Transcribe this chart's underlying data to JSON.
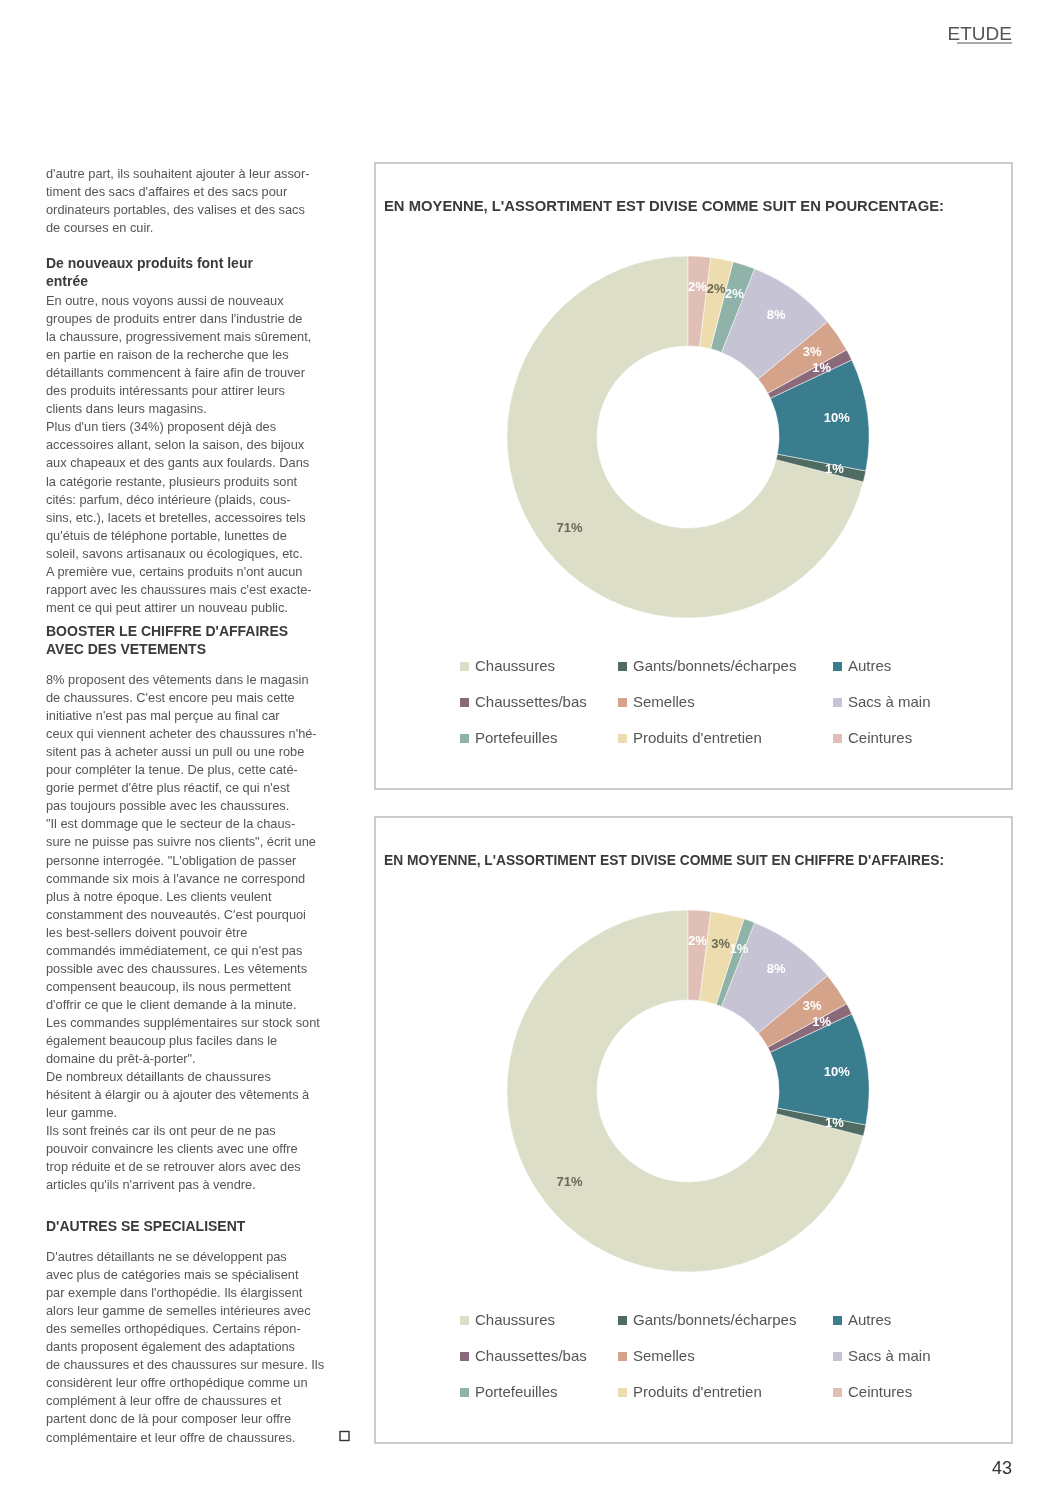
{
  "chart_data": [
    {
      "type": "other",
      "title": "ETUDE",
      "annotations": [
        "d'autre part, ils souhaitent ajouter à leur assor-",
        "timent des sacs d'affaires et des sacs pour",
        "ordinateurs portables, des valises et des sacs",
        "de courses en cuir."
      ]
    },
    {
      "type": "other",
      "title": "De nouveaux produits font leur entrée",
      "annotations": [
        "En outre, nous voyons aussi de nouveaux",
        "groupes de produits entrer dans l'industrie de",
        "la chaussure, progressivement mais sûrement,",
        "en partie en raison de la recherche que les",
        "détaillants commencent à faire afin de trouver",
        "des produits intéressants pour attirer leurs",
        "clients dans leurs magasins.",
        "Plus d'un tiers (34%) proposent déjà des",
        "accessoires allant, selon la saison, des bijoux",
        "aux chapeaux et des gants aux foulards. Dans",
        "la catégorie restante, plusieurs produits sont",
        "cités: parfum, déco intérieure (plaids, cous-",
        "sins, etc.), lacets et bretelles, accessoires tels",
        "qu'étuis de téléphone portable, lunettes de",
        "soleil, savons artisanaux ou écologiques, etc.",
        "A première vue, certains produits n'ont aucun",
        "rapport avec les chaussures mais c'est exacte-",
        "ment ce qui peut attirer un nouveau public."
      ]
    },
    {
      "type": "other",
      "title": "BOOSTER LE CHIFFRE D'AFFAIRES AVEC DES VETEMENTS",
      "annotations": [
        "8% proposent des vêtements dans le magasin",
        "de chaussures. C'est encore peu mais cette",
        "initiative n'est pas mal perçue au final car",
        "ceux qui viennent acheter des chaussures n'hé-",
        "sitent pas à acheter aussi un pull ou une robe",
        "pour compléter la tenue. De plus, cette caté-",
        "gorie permet d'être plus réactif, ce qui n'est",
        "pas toujours possible avec les chaussures.",
        "\"Il est dommage que le secteur de la chaus-",
        "sure ne puisse pas suivre nos clients\", écrit une",
        "personne interrogée. \"L'obligation de passer",
        "commande six mois à l'avance ne correspond",
        "plus à notre époque. Les clients veulent",
        "constamment des nouveautés. C'est pourquoi",
        "les best-sellers doivent pouvoir être",
        "commandés immédiatement, ce qui n'est pas",
        "possible avec des chaussures. Les vêtements",
        "compensent beaucoup, ils nous permettent",
        "d'offrir ce que le client demande à la minute.",
        "Les commandes supplémentaires sur stock sont",
        "également beaucoup plus faciles dans le",
        "domaine du prêt-à-porter\".",
        "De nombreux détaillants de chaussures",
        "hésitent à élargir ou à ajouter des vêtements à",
        "leur gamme.",
        "Ils sont freinés car ils ont peur de ne pas",
        "pouvoir convaincre les clients avec une offre",
        "trop réduite et de se retrouver alors avec des",
        "articles qu'ils n'arrivent pas à vendre."
      ]
    },
    {
      "type": "other",
      "title": "D'AUTRES SE SPECIALISENT",
      "annotations": [
        "D'autres détaillants ne se développent pas",
        "avec plus de catégories mais se spécialisent",
        "par exemple dans l'orthopédie. Ils élargissent",
        "alors leur gamme de semelles intérieures avec",
        "des semelles orthopédiques. Certains répon-",
        "dants proposent également des adaptations",
        "de chaussures et des chaussures sur mesure. Ils",
        "considèrent leur offre orthopédique comme un",
        "complément à leur offre de chaussures et",
        "partent donc de là pour composer leur offre",
        "complémentaire et leur offre de chaussures."
      ]
    },
    {
      "type": "donut",
      "title": "EN MOYENNE, L'ASSORTIMENT EST DIVISE COMME SUIT EN POURCENTAGE:",
      "categories": [
        "Chaussures",
        "Gants/bonnets/écharpes",
        "Autres",
        "Chaussettes/bas",
        "Semelles",
        "Sacs à main",
        "Portefeuilles",
        "Produits d'entretien",
        "Ceintures"
      ],
      "values": [
        71,
        1,
        10,
        1,
        3,
        8,
        2,
        2,
        2
      ],
      "value_labels": [
        "71%",
        "1%",
        "10%",
        "1%",
        "3%",
        "8%",
        "2%",
        "2%",
        "2%"
      ],
      "colors": [
        "#dcdec8",
        "#4f6b62",
        "#3a7d8f",
        "#8a6a7a",
        "#d4a38a",
        "#c5c3d4",
        "#8fb3a8",
        "#ecdcae",
        "#e0bfb4"
      ],
      "legend": "bottom"
    },
    {
      "type": "donut",
      "title": "EN MOYENNE, L'ASSORTIMENT EST DIVISE COMME SUIT EN CHIFFRE D'AFFAIRES:",
      "categories": [
        "Chaussures",
        "Gants/bonnets/écharpes",
        "Autres",
        "Chaussettes/bas",
        "Semelles",
        "Sacs à main",
        "Portefeuilles",
        "Produits d'entretien",
        "Ceintures"
      ],
      "values": [
        71,
        1,
        10,
        1,
        3,
        8,
        1,
        3,
        2
      ],
      "value_labels": [
        "71%",
        "1%",
        "10%",
        "1%",
        "3%",
        "8%",
        "1%",
        "3%",
        "2%"
      ],
      "colors": [
        "#dcdec8",
        "#4f6b62",
        "#3a7d8f",
        "#8a6a7a",
        "#d4a38a",
        "#c5c3d4",
        "#8fb3a8",
        "#ecdcae",
        "#e0bfb4"
      ],
      "legend": "bottom",
      "annotations": [
        "43"
      ]
    }
  ]
}
